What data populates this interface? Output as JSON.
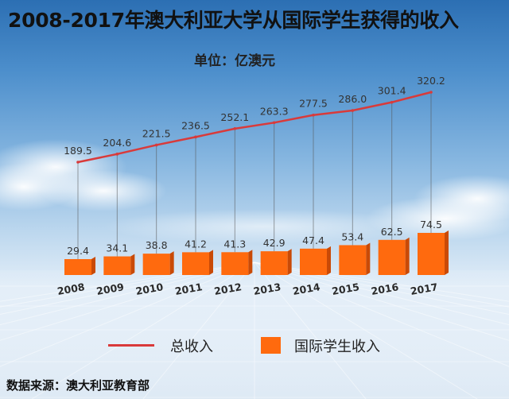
{
  "header": {
    "title": "2008-2017年澳大利亚大学从国际学生获得的收入",
    "unit": "单位：亿澳元"
  },
  "legend": {
    "line_label": "总收入",
    "bar_label": "国际学生收入"
  },
  "footer": {
    "source": "数据来源：澳大利亚教育部"
  },
  "colors": {
    "line": "#d93a3a",
    "bar": "#ff6a0e",
    "bar_side": "#c94a07",
    "label_text": "#333333"
  },
  "chart_data": {
    "type": "bar",
    "categories": [
      "2008",
      "2009",
      "2010",
      "2011",
      "2012",
      "2013",
      "2014",
      "2015",
      "2016",
      "2017"
    ],
    "series": [
      {
        "name": "总收入",
        "type": "line",
        "values": [
          189.5,
          204.6,
          221.5,
          236.5,
          252.1,
          263.3,
          277.5,
          286.0,
          301.4,
          320.2
        ]
      },
      {
        "name": "国际学生收入",
        "type": "bar",
        "values": [
          29.4,
          34.1,
          38.8,
          41.2,
          41.3,
          42.9,
          47.4,
          53.4,
          62.5,
          74.5
        ]
      }
    ],
    "value_labels": {
      "line": [
        "189.5",
        "204.6",
        "221.5",
        "236.5",
        "252.1",
        "263.3",
        "277.5",
        "286.0",
        "301.4",
        "320.2"
      ],
      "bar": [
        "29.4",
        "34.1",
        "38.8",
        "41.2",
        "41.3",
        "42.9",
        "47.4",
        "53.4",
        "62.5",
        "74.5"
      ]
    },
    "legend_position": "bottom",
    "grid": false
  }
}
